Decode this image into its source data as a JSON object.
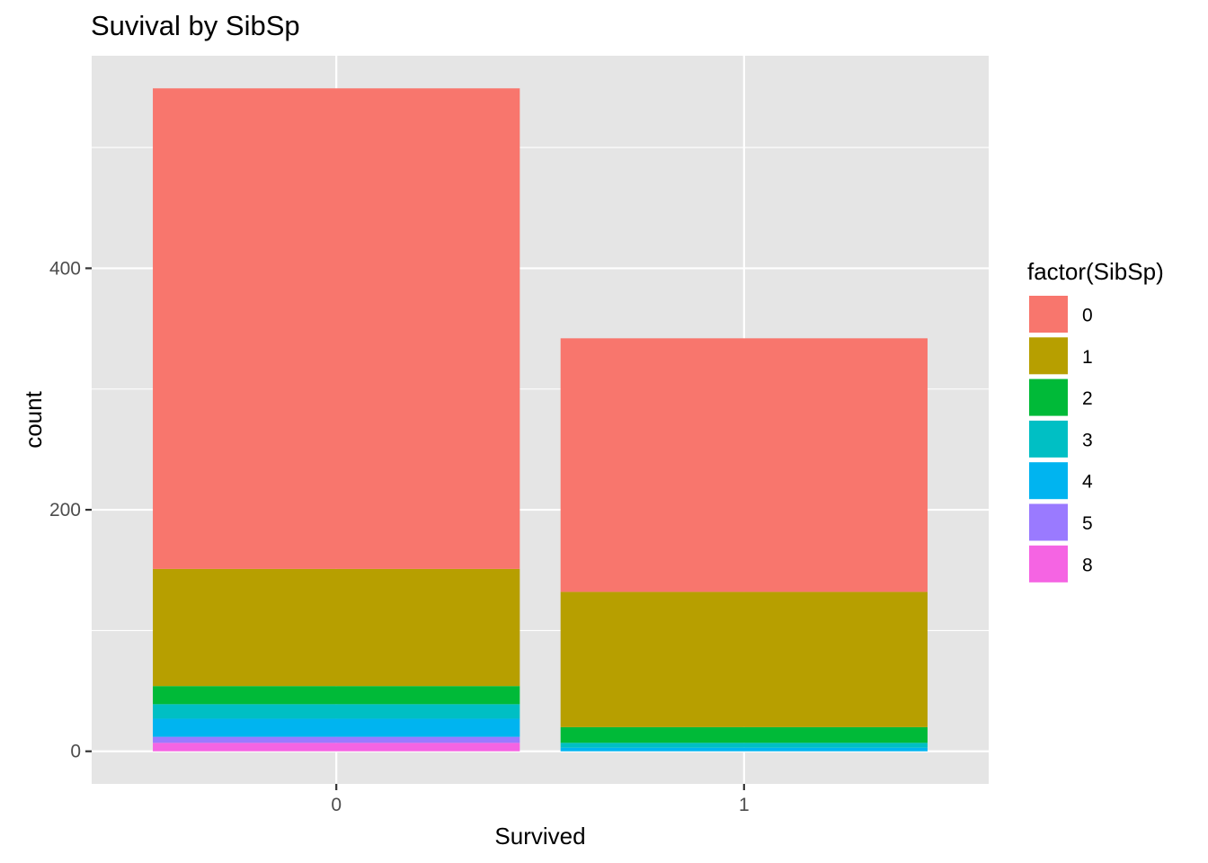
{
  "chart_data": {
    "type": "bar",
    "stacked": true,
    "title": "Suvival by SibSp",
    "xlabel": "Survived",
    "ylabel": "count",
    "categories": [
      "0",
      "1"
    ],
    "y_ticks": [
      0,
      200,
      400
    ],
    "ylim": [
      -27,
      576
    ],
    "grid": true,
    "legend": {
      "title": "factor(SibSp)",
      "position": "right"
    },
    "series": [
      {
        "name": "0",
        "color": "#F8766D",
        "values": [
          398,
          210
        ]
      },
      {
        "name": "1",
        "color": "#B79F00",
        "values": [
          97,
          112
        ]
      },
      {
        "name": "2",
        "color": "#00BA38",
        "values": [
          15,
          13
        ]
      },
      {
        "name": "3",
        "color": "#00BFC4",
        "values": [
          12,
          4
        ]
      },
      {
        "name": "4",
        "color": "#00B4F0",
        "values": [
          15,
          3
        ]
      },
      {
        "name": "5",
        "color": "#9A7AFF",
        "values": [
          5,
          0
        ]
      },
      {
        "name": "8",
        "color": "#F564E3",
        "values": [
          7,
          0
        ]
      }
    ]
  }
}
